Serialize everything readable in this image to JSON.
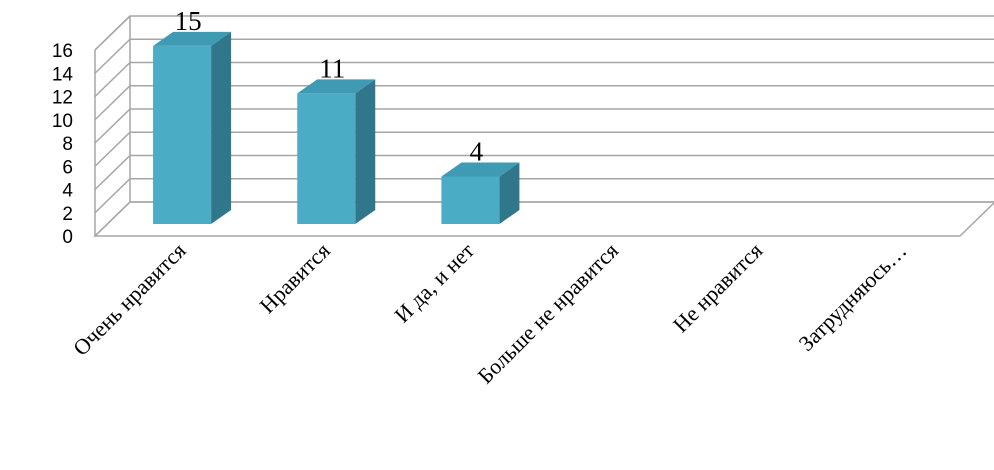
{
  "chart_data": {
    "type": "bar",
    "style": "3d-column",
    "title": "",
    "xlabel": "",
    "ylabel": "",
    "categories": [
      "Очень нравится",
      "Нравится",
      "И да, и нет",
      "Больше не нравится",
      "Не нравится",
      "Затрудняюсь…"
    ],
    "values": [
      15,
      11,
      4,
      0,
      0,
      0
    ],
    "data_labels": [
      "15",
      "11",
      "4",
      "",
      "",
      ""
    ],
    "ylim": [
      0,
      16
    ],
    "yticks": [
      "0",
      "2",
      "4",
      "6",
      "8",
      "10",
      "12",
      "14",
      "16"
    ],
    "grid": true,
    "legend": "none",
    "colors": {
      "bar_front": "#4BACC6",
      "bar_side": "#31778C",
      "bar_top": "#3F9AB3",
      "grid": "#A6A6A6"
    }
  }
}
